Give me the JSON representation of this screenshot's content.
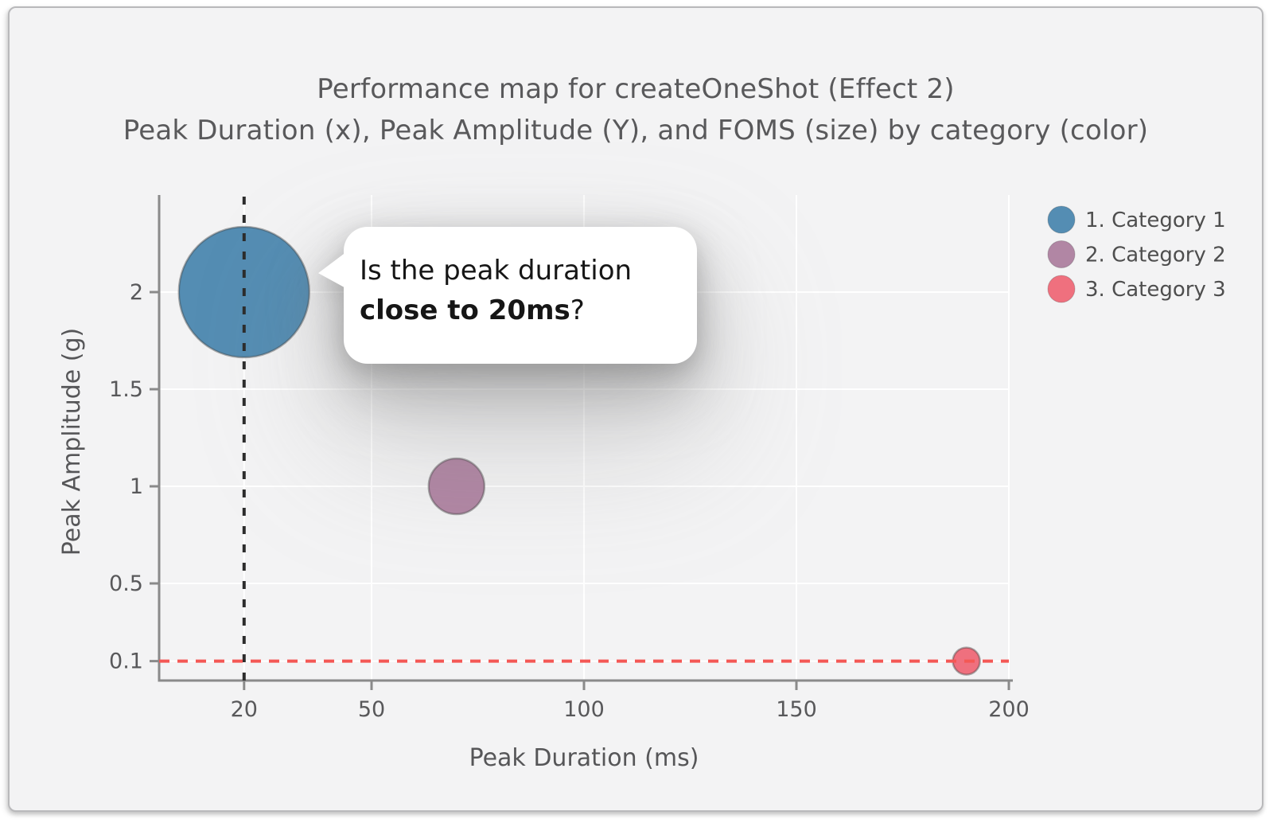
{
  "chart_data": {
    "type": "scatter",
    "title": "Performance map for createOneShot (Effect 2)",
    "subtitle": "Peak Duration (x), Peak Amplitude (Y), and FOMS (size) by category (color)",
    "xlabel": "Peak Duration (ms)",
    "ylabel": "Peak Amplitude (g)",
    "xlim": [
      0,
      200
    ],
    "ylim": [
      0,
      2.5
    ],
    "xticks": [
      20,
      50,
      100,
      150,
      200
    ],
    "yticks": [
      0.1,
      0.5,
      1,
      1.5,
      2
    ],
    "grid": true,
    "legend_position": "top-right",
    "size_encoding": "FOMS",
    "series": [
      {
        "name": "1. Category 1",
        "color": "#548db3",
        "points": [
          {
            "x": 20,
            "y": 2.0,
            "radius_px": 82
          }
        ]
      },
      {
        "name": "2. Category 2",
        "color": "#b186a4",
        "points": [
          {
            "x": 70,
            "y": 1.0,
            "radius_px": 35
          }
        ]
      },
      {
        "name": "3. Category 3",
        "color": "#ef707e",
        "points": [
          {
            "x": 190,
            "y": 0.1,
            "radius_px": 17
          }
        ]
      }
    ],
    "reference_lines": [
      {
        "axis": "x",
        "value": 20,
        "color": "#2c2c2c",
        "style": "dotted"
      },
      {
        "axis": "y",
        "value": 0.1,
        "color": "#f45855",
        "style": "dotted"
      }
    ]
  },
  "callout": {
    "line1": "Is the peak duration",
    "line2_bold": "close to 20ms",
    "line2_suffix": "?"
  }
}
